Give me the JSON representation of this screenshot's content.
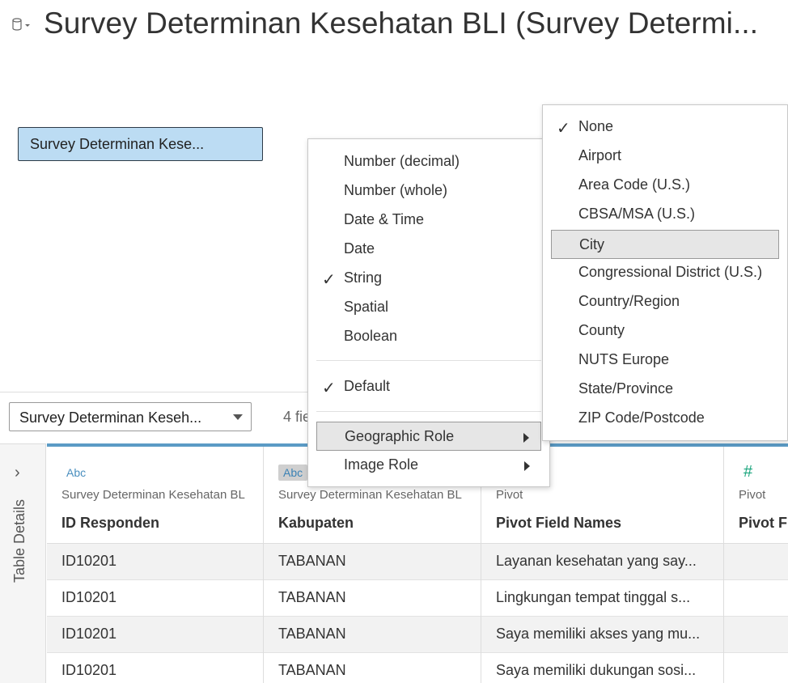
{
  "header": {
    "title": "Survey Determinan Kesehatan BLI (Survey Determi..."
  },
  "canvas": {
    "table_pill": "Survey Determinan Kese..."
  },
  "toolbar": {
    "connection": "Survey Determinan Keseh...",
    "fields_count": "4 fie"
  },
  "side_panel": {
    "label": "Table Details"
  },
  "grid": {
    "columns": [
      {
        "type": "Abc",
        "source": "Survey Determinan Kesehatan BL",
        "name": "ID Responden",
        "cells": [
          "ID10201",
          "ID10201",
          "ID10201",
          "ID10201"
        ]
      },
      {
        "type": "Abc",
        "source": "Survey Determinan Kesehatan BL",
        "name": "Kabupaten",
        "cells": [
          "TABANAN",
          "TABANAN",
          "TABANAN",
          "TABANAN"
        ]
      },
      {
        "type": "",
        "source": "Pivot",
        "name": "Pivot Field Names",
        "cells": [
          "Layanan kesehatan yang say...",
          "Lingkungan tempat tinggal s...",
          "Saya memiliki akses yang mu...",
          "Saya memiliki dukungan sosi..."
        ]
      },
      {
        "type": "#",
        "source": "Pivot",
        "name": "Pivot Fi",
        "cells": [
          "",
          "",
          "",
          ""
        ]
      }
    ]
  },
  "data_type_menu": {
    "items": [
      {
        "label": "Number (decimal)",
        "checked": false
      },
      {
        "label": "Number (whole)",
        "checked": false
      },
      {
        "label": "Date & Time",
        "checked": false
      },
      {
        "label": "Date",
        "checked": false
      },
      {
        "label": "String",
        "checked": true
      },
      {
        "label": "Spatial",
        "checked": false
      },
      {
        "label": "Boolean",
        "checked": false
      }
    ],
    "default_label": "Default",
    "geographic_role_label": "Geographic Role",
    "image_role_label": "Image Role",
    "check_glyph": "✓"
  },
  "geo_menu": {
    "items": [
      {
        "label": "None",
        "checked": true
      },
      {
        "label": "Airport",
        "checked": false
      },
      {
        "label": "Area Code (U.S.)",
        "checked": false
      },
      {
        "label": "CBSA/MSA (U.S.)",
        "checked": false
      },
      {
        "label": "City",
        "checked": false,
        "highlighted": true
      },
      {
        "label": "Congressional District (U.S.)",
        "checked": false
      },
      {
        "label": "Country/Region",
        "checked": false
      },
      {
        "label": "County",
        "checked": false
      },
      {
        "label": "NUTS Europe",
        "checked": false
      },
      {
        "label": "State/Province",
        "checked": false
      },
      {
        "label": "ZIP Code/Postcode",
        "checked": false
      }
    ]
  },
  "colors": {
    "accent": "#5b9bc5",
    "pill": "#bcdcf3",
    "number_icon": "#1aa57d"
  }
}
